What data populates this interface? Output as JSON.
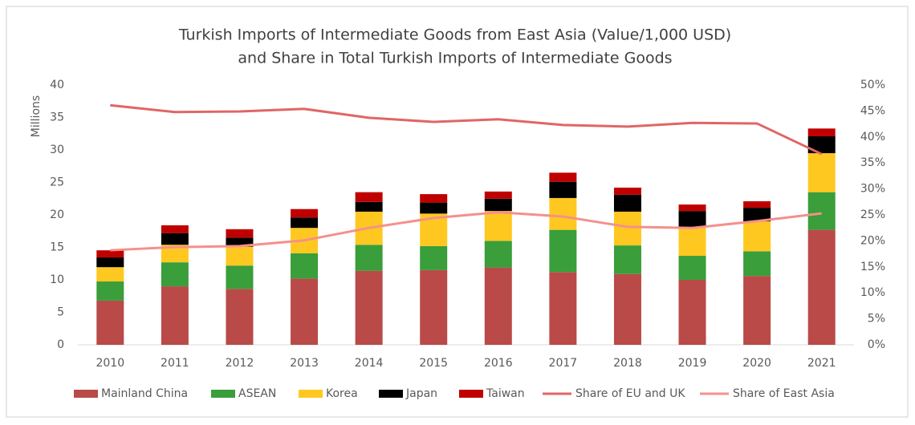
{
  "chart_data": {
    "type": "bar",
    "stacked": true,
    "title": [
      "Turkish Imports of Intermediate Goods from East Asia (Value/1,000 USD)",
      "and Share in Total Turkish Imports of Intermediate Goods"
    ],
    "y_label": "Millions",
    "categories": [
      "2010",
      "2011",
      "2012",
      "2013",
      "2014",
      "2015",
      "2016",
      "2017",
      "2018",
      "2019",
      "2020",
      "2021"
    ],
    "ylim": [
      0,
      40
    ],
    "yticks": [
      0,
      5,
      10,
      15,
      20,
      25,
      30,
      35,
      40
    ],
    "y2lim": [
      0,
      50
    ],
    "y2ticks": [
      {
        "value": 0,
        "label": "0%"
      },
      {
        "value": 5,
        "label": "5%"
      },
      {
        "value": 10,
        "label": "10%"
      },
      {
        "value": 15,
        "label": "15%"
      },
      {
        "value": 20,
        "label": "20%"
      },
      {
        "value": 25,
        "label": "25%"
      },
      {
        "value": 30,
        "label": "30%"
      },
      {
        "value": 35,
        "label": "35%"
      },
      {
        "value": 40,
        "label": "40%"
      },
      {
        "value": 45,
        "label": "45%"
      },
      {
        "value": 50,
        "label": "50%"
      }
    ],
    "legend": "bottom",
    "series": [
      {
        "name": "Mainland China",
        "color": "#b94a48",
        "values": [
          6.8,
          9.0,
          8.6,
          10.2,
          11.4,
          11.5,
          11.9,
          11.2,
          10.9,
          10.0,
          10.6,
          17.7
        ]
      },
      {
        "name": "ASEAN",
        "color": "#3a9e3a",
        "values": [
          2.95,
          3.7,
          3.6,
          3.9,
          4.0,
          3.7,
          4.1,
          6.5,
          4.4,
          3.7,
          3.8,
          5.8
        ]
      },
      {
        "name": "Korea",
        "color": "#ffc820",
        "values": [
          2.2,
          2.7,
          2.9,
          3.9,
          5.1,
          5.0,
          4.6,
          4.9,
          5.2,
          4.4,
          4.6,
          6.0
        ]
      },
      {
        "name": "Japan",
        "color": "#000000",
        "values": [
          1.5,
          1.8,
          1.4,
          1.6,
          1.5,
          1.7,
          1.9,
          2.5,
          2.6,
          2.5,
          2.1,
          2.6
        ]
      },
      {
        "name": "Taiwan",
        "color": "#c00000",
        "values": [
          1.1,
          1.2,
          1.3,
          1.3,
          1.5,
          1.3,
          1.1,
          1.4,
          1.1,
          1.0,
          1.0,
          1.2
        ]
      },
      {
        "name": "Share of EU and UK",
        "type": "line",
        "axis": "y2",
        "color": "#e06666",
        "values": [
          46.1,
          44.8,
          44.9,
          45.4,
          43.7,
          42.9,
          43.4,
          42.3,
          42.0,
          42.7,
          42.6,
          36.7
        ]
      },
      {
        "name": "Share of East Asia",
        "type": "line",
        "axis": "y2",
        "color": "#f4908c",
        "values": [
          18.2,
          18.8,
          19.0,
          20.1,
          22.5,
          24.4,
          25.5,
          24.7,
          22.7,
          22.5,
          23.8,
          25.3
        ]
      }
    ]
  }
}
